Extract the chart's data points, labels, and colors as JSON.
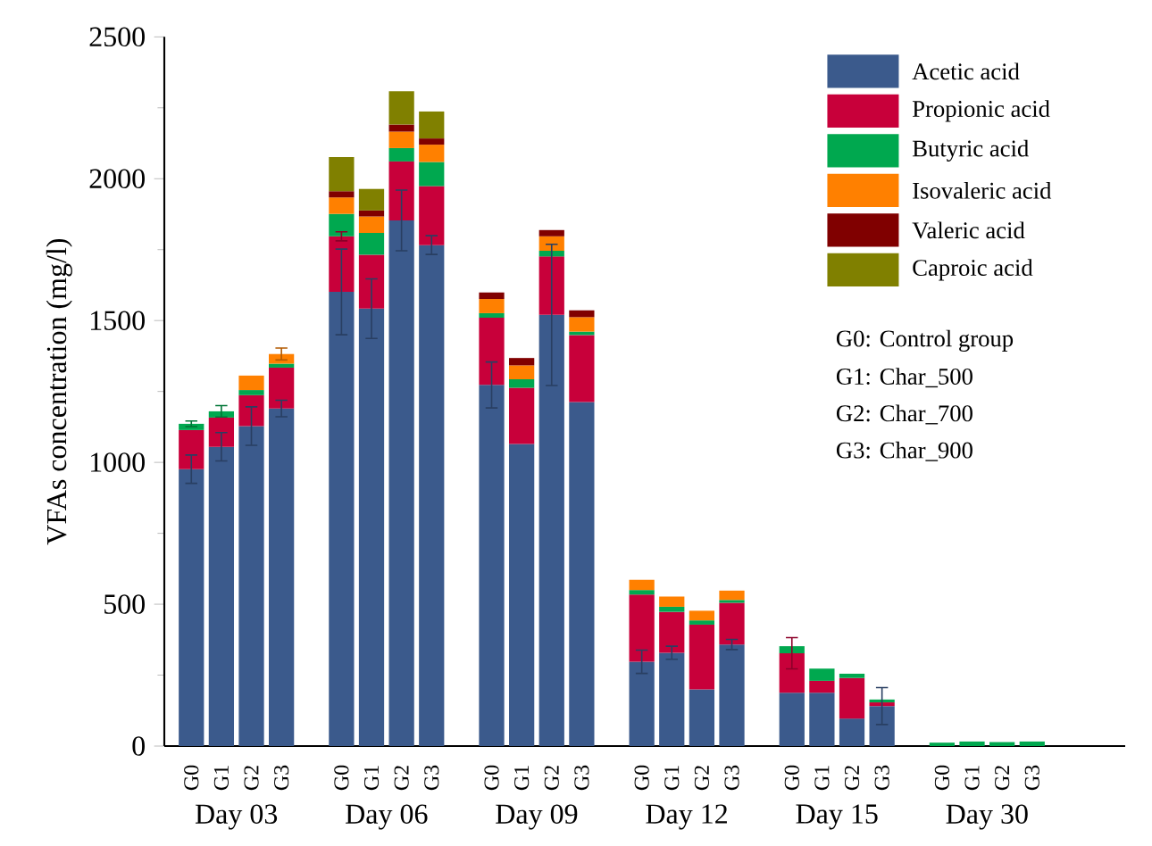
{
  "chart_data": {
    "type": "bar",
    "stacked": true,
    "ylabel": "VFAs concentration (mg/l)",
    "categories": [
      "G0",
      "G1",
      "G2",
      "G3",
      "G0",
      "G1",
      "G2",
      "G3",
      "G0",
      "G1",
      "G2",
      "G3",
      "G0",
      "G1",
      "G2",
      "G3",
      "G0",
      "G1",
      "G2",
      "G3",
      "G0",
      "G1",
      "G2",
      "G3"
    ],
    "ylim": [
      0,
      2500
    ],
    "yticks": [
      0,
      500,
      1000,
      1500,
      2000,
      2500
    ],
    "legend": "top right",
    "series": [
      {
        "name": "Acetic acid",
        "color": "#3b5a8c",
        "values": [
          976,
          1055,
          1128,
          1190,
          1601,
          1542,
          1853,
          1766,
          1273,
          1065,
          1520,
          1213,
          297,
          329,
          200,
          358,
          188,
          188,
          97,
          141,
          null,
          null,
          null,
          null
        ],
        "errors": [
          50,
          50,
          68,
          29,
          151,
          105,
          107,
          33,
          81,
          null,
          249,
          null,
          41,
          23,
          null,
          18,
          null,
          null,
          null,
          65,
          null,
          null,
          null,
          null
        ]
      },
      {
        "name": "Propionic acid",
        "color": "#c8003a",
        "values": [
          138,
          103,
          109,
          144,
          196,
          190,
          208,
          208,
          237,
          198,
          206,
          236,
          237,
          144,
          228,
          147,
          139,
          42,
          143,
          13,
          null,
          null,
          null,
          null
        ],
        "errors": [
          null,
          null,
          null,
          null,
          16,
          null,
          null,
          null,
          null,
          null,
          null,
          null,
          null,
          null,
          null,
          null,
          55,
          null,
          null,
          null,
          null,
          null,
          null,
          null
        ]
      },
      {
        "name": "Butyric acid",
        "color": "#00a84f",
        "values": [
          22,
          22,
          18,
          14,
          79,
          77,
          47,
          85,
          16,
          30,
          20,
          12,
          16,
          18,
          15,
          10,
          25,
          43,
          15,
          10,
          12,
          16,
          14,
          16
        ],
        "errors": [
          10,
          20,
          null,
          null,
          null,
          null,
          null,
          null,
          null,
          null,
          null,
          null,
          null,
          null,
          null,
          null,
          null,
          null,
          null,
          null,
          null,
          null,
          null,
          null
        ]
      },
      {
        "name": "Isovaleric acid",
        "color": "#ff8000",
        "values": [
          null,
          null,
          51,
          34,
          58,
          58,
          58,
          61,
          50,
          49,
          51,
          51,
          36,
          36,
          34,
          33,
          null,
          null,
          null,
          null,
          null,
          null,
          null,
          null
        ],
        "errors": [
          null,
          null,
          null,
          21,
          null,
          null,
          null,
          null,
          null,
          null,
          null,
          null,
          null,
          null,
          null,
          null,
          null,
          null,
          null,
          null,
          null,
          null,
          null,
          null
        ]
      },
      {
        "name": "Valeric acid",
        "color": "#800000",
        "values": [
          null,
          null,
          null,
          null,
          22,
          21,
          25,
          22,
          23,
          26,
          22,
          24,
          null,
          null,
          null,
          null,
          null,
          null,
          null,
          null,
          null,
          null,
          null,
          null
        ]
      },
      {
        "name": "Caproic acid",
        "color": "#808000",
        "values": [
          null,
          null,
          null,
          null,
          120,
          76,
          117,
          95,
          null,
          null,
          null,
          null,
          null,
          null,
          null,
          null,
          null,
          null,
          null,
          null,
          null,
          null,
          null,
          null
        ]
      }
    ],
    "annotations": [
      "Day 03",
      "Day 06",
      "Day 09",
      "Day 12",
      "Day 15",
      "Day 30",
      "G0: Control group",
      "G1: Char_500",
      "G2: Char_700",
      "G3: Char_900"
    ]
  }
}
